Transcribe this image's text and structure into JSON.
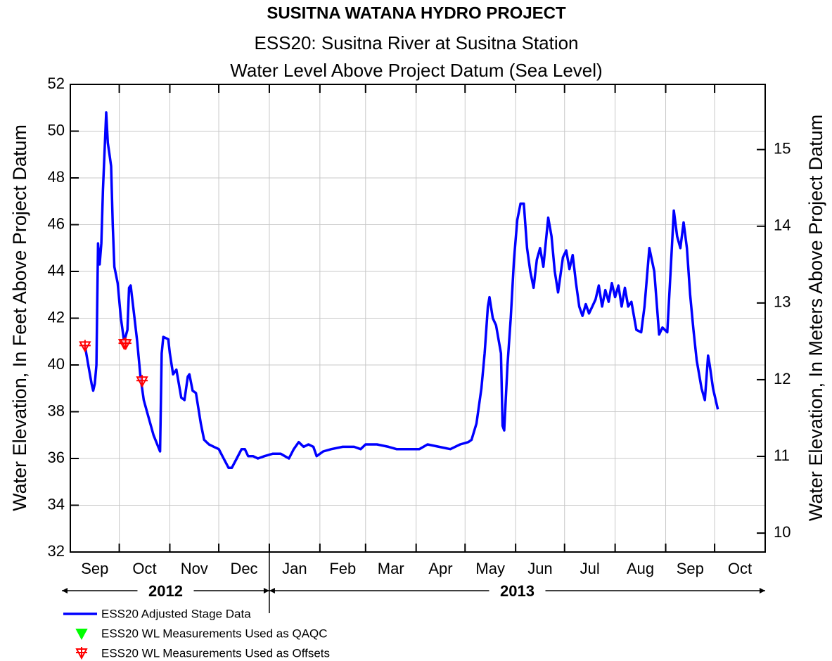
{
  "chart_data": {
    "type": "line",
    "title": "SUSITNA WATANA HYDRO PROJECT",
    "subtitle": [
      "ESS20: Susitna River at Susitna Station",
      "Water Level Above Project Datum (Sea Level)"
    ],
    "ylabel": "Water Elevation, In Feet Above Project Datum",
    "y2label": "Water Elevation, In Meters Above Project Datum",
    "ylim": [
      32,
      52
    ],
    "yticks": [
      32,
      34,
      36,
      38,
      40,
      42,
      44,
      46,
      48,
      50,
      52
    ],
    "y2lim": [
      9.7536,
      15.8496
    ],
    "y2ticks": [
      10,
      11,
      12,
      13,
      14,
      15
    ],
    "xlim": [
      "2012-09-01",
      "2013-11-01"
    ],
    "xticks": [
      {
        "value": "2012-09-01",
        "label": "Sep"
      },
      {
        "value": "2012-10-01",
        "label": "Oct"
      },
      {
        "value": "2012-11-01",
        "label": "Nov"
      },
      {
        "value": "2012-12-01",
        "label": "Dec"
      },
      {
        "value": "2013-01-01",
        "label": "Jan"
      },
      {
        "value": "2013-02-01",
        "label": "Feb"
      },
      {
        "value": "2013-03-01",
        "label": "Mar"
      },
      {
        "value": "2013-04-01",
        "label": "Apr"
      },
      {
        "value": "2013-05-01",
        "label": "May"
      },
      {
        "value": "2013-06-01",
        "label": "Jun"
      },
      {
        "value": "2013-07-01",
        "label": "Jul"
      },
      {
        "value": "2013-08-01",
        "label": "Aug"
      },
      {
        "value": "2013-09-01",
        "label": "Sep"
      },
      {
        "value": "2013-10-01",
        "label": "Oct"
      }
    ],
    "years": [
      "2012",
      "2013"
    ],
    "grid": true,
    "series": [
      {
        "name": "ESS20 Adjusted Stage Data",
        "color": "#0000ff",
        "marker": "none",
        "x": [
          "2012-09-10",
          "2012-09-12",
          "2012-09-14",
          "2012-09-15",
          "2012-09-16",
          "2012-09-17",
          "2012-09-18",
          "2012-09-19",
          "2012-09-20",
          "2012-09-21",
          "2012-09-23",
          "2012-09-24",
          "2012-09-25",
          "2012-09-26",
          "2012-09-27",
          "2012-09-28",
          "2012-09-30",
          "2012-10-02",
          "2012-10-04",
          "2012-10-06",
          "2012-10-07",
          "2012-10-08",
          "2012-10-10",
          "2012-10-12",
          "2012-10-14",
          "2012-10-16",
          "2012-10-18",
          "2012-10-22",
          "2012-10-26",
          "2012-10-27",
          "2012-10-28",
          "2012-10-31",
          "2012-11-01",
          "2012-11-03",
          "2012-11-05",
          "2012-11-08",
          "2012-11-10",
          "2012-11-12",
          "2012-11-13",
          "2012-11-15",
          "2012-11-17",
          "2012-11-20",
          "2012-11-22",
          "2012-11-25",
          "2012-11-28",
          "2012-12-01",
          "2012-12-04",
          "2012-12-07",
          "2012-12-09",
          "2012-12-12",
          "2012-12-15",
          "2012-12-17",
          "2012-12-19",
          "2012-12-22",
          "2012-12-25",
          "2012-12-29",
          "2013-01-03",
          "2013-01-08",
          "2013-01-13",
          "2013-01-16",
          "2013-01-19",
          "2013-01-22",
          "2013-01-25",
          "2013-01-28",
          "2013-01-30",
          "2013-02-03",
          "2013-02-08",
          "2013-02-15",
          "2013-02-22",
          "2013-02-26",
          "2013-03-01",
          "2013-03-08",
          "2013-03-15",
          "2013-03-20",
          "2013-03-28",
          "2013-04-03",
          "2013-04-08",
          "2013-04-15",
          "2013-04-22",
          "2013-04-28",
          "2013-05-03",
          "2013-05-05",
          "2013-05-08",
          "2013-05-11",
          "2013-05-13",
          "2013-05-15",
          "2013-05-16",
          "2013-05-18",
          "2013-05-20",
          "2013-05-23",
          "2013-05-24",
          "2013-05-25",
          "2013-05-27",
          "2013-05-29",
          "2013-05-31",
          "2013-06-02",
          "2013-06-04",
          "2013-06-06",
          "2013-06-08",
          "2013-06-10",
          "2013-06-12",
          "2013-06-14",
          "2013-06-16",
          "2013-06-18",
          "2013-06-21",
          "2013-06-23",
          "2013-06-25",
          "2013-06-27",
          "2013-06-30",
          "2013-07-02",
          "2013-07-04",
          "2013-07-06",
          "2013-07-08",
          "2013-07-10",
          "2013-07-12",
          "2013-07-14",
          "2013-07-16",
          "2013-07-18",
          "2013-07-20",
          "2013-07-22",
          "2013-07-24",
          "2013-07-26",
          "2013-07-28",
          "2013-07-30",
          "2013-08-01",
          "2013-08-03",
          "2013-08-05",
          "2013-08-07",
          "2013-08-09",
          "2013-08-11",
          "2013-08-14",
          "2013-08-17",
          "2013-08-19",
          "2013-08-22",
          "2013-08-25",
          "2013-08-28",
          "2013-08-30",
          "2013-09-02",
          "2013-09-04",
          "2013-09-06",
          "2013-09-08",
          "2013-09-10",
          "2013-09-12",
          "2013-09-14",
          "2013-09-16",
          "2013-09-18",
          "2013-09-20",
          "2013-09-23",
          "2013-09-25",
          "2013-09-27",
          "2013-09-28",
          "2013-09-30",
          "2013-10-03"
        ],
        "values": [
          40.8,
          40.0,
          39.2,
          38.9,
          39.2,
          40.0,
          45.2,
          44.3,
          45.2,
          47.5,
          50.8,
          49.5,
          49.0,
          48.5,
          46.0,
          44.2,
          43.5,
          42.0,
          41.0,
          41.5,
          43.3,
          43.4,
          42.2,
          41.0,
          39.5,
          38.5,
          38.0,
          37.0,
          36.3,
          40.5,
          41.2,
          41.1,
          40.5,
          39.6,
          39.8,
          38.6,
          38.5,
          39.5,
          39.6,
          38.9,
          38.8,
          37.5,
          36.8,
          36.6,
          36.5,
          36.4,
          36.0,
          35.6,
          35.6,
          36.0,
          36.4,
          36.4,
          36.1,
          36.1,
          36.0,
          36.1,
          36.2,
          36.2,
          36.0,
          36.4,
          36.7,
          36.5,
          36.6,
          36.5,
          36.1,
          36.3,
          36.4,
          36.5,
          36.5,
          36.4,
          36.6,
          36.6,
          36.5,
          36.4,
          36.4,
          36.4,
          36.6,
          36.5,
          36.4,
          36.6,
          36.7,
          36.8,
          37.5,
          39.0,
          40.5,
          42.5,
          42.9,
          42.0,
          41.7,
          40.5,
          37.4,
          37.2,
          40.0,
          42.0,
          44.5,
          46.2,
          46.9,
          46.9,
          45.0,
          44.0,
          43.3,
          44.5,
          45.0,
          44.2,
          46.3,
          45.5,
          44.0,
          43.1,
          44.6,
          44.9,
          44.1,
          44.7,
          43.5,
          42.5,
          42.1,
          42.6,
          42.2,
          42.5,
          42.8,
          43.4,
          42.5,
          43.2,
          42.7,
          43.5,
          42.9,
          43.4,
          42.5,
          43.3,
          42.5,
          42.7,
          41.5,
          41.4,
          42.5,
          45.0,
          44.0,
          41.3,
          41.6,
          41.4,
          44.0,
          46.6,
          45.5,
          45.0,
          46.1,
          45.0,
          43.0,
          41.5,
          40.2,
          39.0,
          38.5,
          40.4,
          40.0,
          39.0,
          38.1
        ]
      },
      {
        "name": "ESS20 WL Measurements Used as QAQC",
        "color": "#00ff00",
        "marker": "triangle",
        "x": [],
        "values": []
      },
      {
        "name": "ESS20 WL Measurements Used as Offsets",
        "color": "#ff0000",
        "marker": "triangle-cross",
        "x": [
          "2012-09-10",
          "2012-10-04",
          "2012-10-05",
          "2012-10-15"
        ],
        "values": [
          40.8,
          40.9,
          40.9,
          39.3
        ]
      }
    ]
  }
}
